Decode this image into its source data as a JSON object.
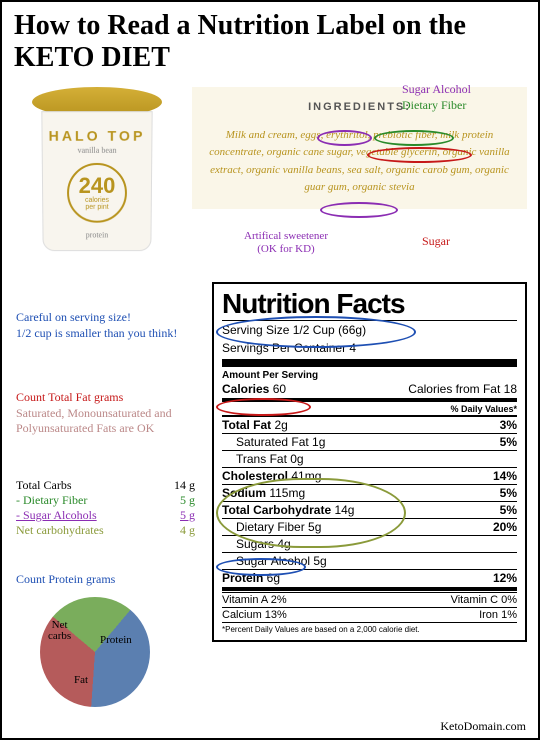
{
  "title": "How to Read a Nutrition Label on the KETO DIET",
  "product": {
    "brand": "HALO TOP",
    "flavor": "vanilla bean",
    "calories_num": "240",
    "calories_txt": "calories\nper pint",
    "bottom": "protein"
  },
  "ingredients": {
    "label": "INGREDIENTS:",
    "text": "Milk and cream, eggs, erythritol, prebiotic fiber, milk protein concentrate, organic cane sugar, vegetable glycerin, organic vanilla extract, organic vanilla beans, sea salt, organic carob gum, organic guar gum, organic stevia"
  },
  "legend": {
    "sugar_alcohol": "Sugar Alcohol",
    "dietary_fiber": "Dietary Fiber",
    "artificial": "Artifical sweetener\n(OK for KD)",
    "sugar": "Sugar"
  },
  "colors": {
    "purple": "#8b2db3",
    "green": "#2a8a2a",
    "olive": "#8a9a3a",
    "red": "#c61818",
    "blue": "#1e4fb3",
    "pie_net": "#7aad5c",
    "pie_protein": "#5b7fb0",
    "pie_fat": "#b55b5b"
  },
  "nutrition": {
    "title": "Nutrition Facts",
    "serving_size": "Serving Size 1/2 Cup (66g)",
    "servings": "Servings Per Container  4",
    "aps": "Amount Per Serving",
    "calories_l": "Calories",
    "calories_v": "60",
    "calories_fat": "Calories from Fat 18",
    "dv_header": "% Daily Values*",
    "rows": [
      {
        "l": "Total Fat",
        "v": "2g",
        "dv": "3%",
        "b": true
      },
      {
        "l": "Saturated Fat",
        "v": "1g",
        "dv": "5%",
        "i": true
      },
      {
        "l": "Trans Fat",
        "v": "0g",
        "dv": "",
        "i": true
      },
      {
        "l": "Cholesterol",
        "v": "41mg",
        "dv": "14%",
        "b": true
      },
      {
        "l": "Sodium",
        "v": "115mg",
        "dv": "5%",
        "b": true
      },
      {
        "l": "Total Carbohydrate",
        "v": "14g",
        "dv": "5%",
        "b": true
      },
      {
        "l": "Dietary Fiber",
        "v": "5g",
        "dv": "20%",
        "i": true
      },
      {
        "l": "Sugars",
        "v": "4g",
        "dv": "",
        "i": true
      },
      {
        "l": "Sugar Alcohol",
        "v": "5g",
        "dv": "",
        "i": true
      },
      {
        "l": "Protein",
        "v": "6g",
        "dv": "12%",
        "b": true
      }
    ],
    "vitamins": [
      {
        "a": "Vitamin A 2%",
        "b": "Vitamin C 0%"
      },
      {
        "a": "Calcium 13%",
        "b": "Iron 1%"
      }
    ],
    "footnote": "*Percent Daily Values are based on a 2,000 calorie diet."
  },
  "notes": {
    "serving": "Careful on serving size!\n1/2 cup is smaller than you think!",
    "fat": "Count Total Fat grams\nSaturated, Monounsaturated and Polyunsaturated Fats are OK",
    "protein": "Count Protein grams"
  },
  "carb_calc": {
    "rows": [
      {
        "l": "Total Carbs",
        "v": "14 g",
        "c": "#000000"
      },
      {
        "l": "- Dietary Fiber",
        "v": "5 g",
        "c": "#2a8a2a"
      },
      {
        "l": "- Sugar Alcohols",
        "v": "5 g",
        "c": "#8b2db3",
        "u": true
      },
      {
        "l": "Net carbohydrates",
        "v": "4 g",
        "c": "#8a9a3a"
      }
    ]
  },
  "pie": {
    "slices": [
      {
        "label": "Net carbs",
        "pct": 25,
        "color": "#7aad5c"
      },
      {
        "label": "Protein",
        "pct": 40,
        "color": "#5b7fb0"
      },
      {
        "label": "Fat",
        "pct": 35,
        "color": "#b55b5b"
      }
    ]
  },
  "footer": "KetoDomain.com"
}
